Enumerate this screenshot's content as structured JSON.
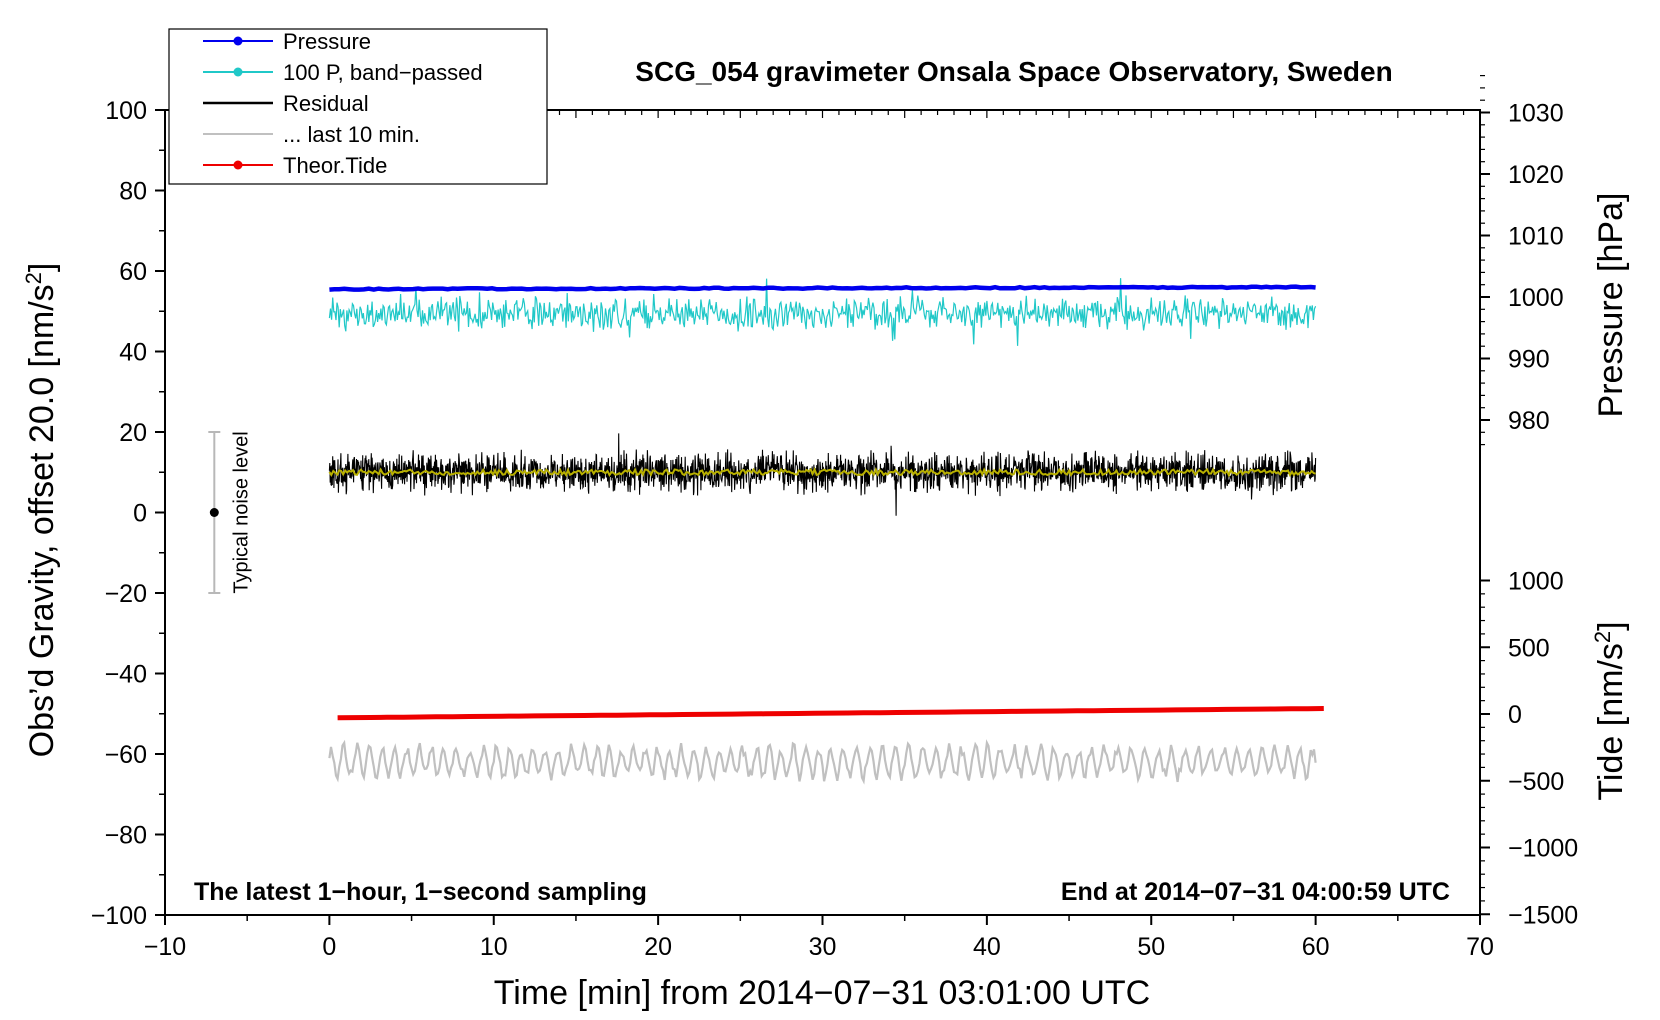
{
  "chart_data": {
    "type": "line",
    "title": "SCG_054 gravimeter Onsala Space Observatory, Sweden",
    "xlabel": "Time [min] from 2014−07−31 03:01:00 UTC",
    "ylabel": "Obs’d Gravity, offset 20.0 [nm/s",
    "ylabel_sup": "2",
    "ylabel_end": "]",
    "right_label_top": "Pressure [hPa]",
    "right_label_bottom": "Tide [nm/s",
    "right_label_bottom_sup": "2",
    "right_label_bottom_end": "]",
    "xlim": [
      -10,
      70
    ],
    "ylim": [
      -100,
      100
    ],
    "x_ticks": [
      -10,
      0,
      10,
      20,
      30,
      40,
      50,
      60,
      70
    ],
    "x_tick_labels": [
      "−10",
      "0",
      "10",
      "20",
      "30",
      "40",
      "50",
      "60",
      "70"
    ],
    "y_ticks": [
      -100,
      -80,
      -60,
      -40,
      -20,
      0,
      20,
      40,
      60,
      80,
      100
    ],
    "y_tick_labels": [
      "−100",
      "−80",
      "−60",
      "−40",
      "−20",
      "0",
      "20",
      "40",
      "60",
      "80",
      "100"
    ],
    "pressure_ticks": [
      980,
      990,
      1000,
      1010,
      1020,
      1030
    ],
    "pressure_tick_labels": [
      "980",
      "990",
      "1000",
      "1010",
      "1020",
      "1030"
    ],
    "tide_ticks": [
      -1500,
      -1000,
      -500,
      0,
      500,
      1000
    ],
    "tide_tick_labels": [
      "−1500",
      "−1000",
      "−500",
      "0",
      "500",
      "1000"
    ],
    "legend": [
      {
        "label": "Pressure",
        "color": "#0000ee",
        "marker": true
      },
      {
        "label": "100 P, band−passed",
        "color": "#20c8c8",
        "marker": true
      },
      {
        "label": "Residual",
        "color": "#000000",
        "marker": false
      },
      {
        "label": "... last 10 min.",
        "color": "#c0c0c0",
        "marker": false
      },
      {
        "label": "Theor.Tide",
        "color": "#ee0000",
        "marker": true
      }
    ],
    "series": [
      {
        "name": "Pressure",
        "color": "#0000ee",
        "x_range": [
          0,
          60
        ],
        "y_start": 55.5,
        "y_end": 56.0,
        "noise_amplitude": 0.3
      },
      {
        "name": "100 P, band-passed",
        "color": "#20c8c8",
        "x_range": [
          0,
          60
        ],
        "y_center": 49.5,
        "noise_amplitude": 3.5
      },
      {
        "name": "Residual",
        "color": "#000000",
        "x_range": [
          0,
          60
        ],
        "y_center": 10,
        "noise_amplitude": 5
      },
      {
        "name": "Residual smoothed",
        "color": "#b8b000",
        "x_range": [
          0,
          60
        ],
        "y_center": 10,
        "noise_amplitude": 0.7
      },
      {
        "name": "Theor.Tide",
        "color": "#ee0000",
        "x_range": [
          0.5,
          60.5
        ],
        "y_start": -51,
        "y_end": -48.7,
        "noise_amplitude": 0
      },
      {
        "name": "... last 10 min.",
        "color": "#c0c0c0",
        "x_range": [
          0,
          60
        ],
        "y_center": -62,
        "noise_amplitude": 4
      }
    ],
    "noise_bar": {
      "x": -7,
      "y_low": -20,
      "y_mid": 0,
      "y_high": 20,
      "label": "Typical noise level"
    },
    "notes": {
      "left": "The latest 1−hour, 1−second sampling",
      "right": "End at 2014−07−31 04:00:59 UTC"
    }
  }
}
